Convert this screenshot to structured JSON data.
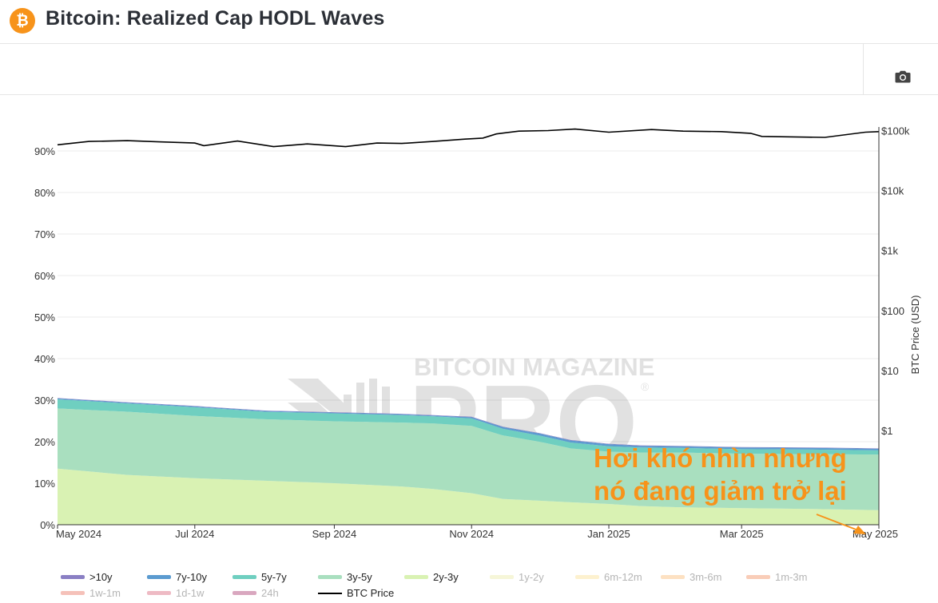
{
  "header": {
    "title": "Bitcoin: Realized Cap HODL Waves",
    "logo_glyph": "₿",
    "logo_icon": "bitcoin-logo-icon",
    "accent": "#f7931a"
  },
  "toolbar": {
    "camera_icon": "camera-icon"
  },
  "watermark": {
    "top": "BITCOIN MAGAZINE",
    "bottom": "PRO",
    "mark": "®"
  },
  "annotation": {
    "lines": [
      "Hơi khó nhìn nhưng",
      "nó đang giảm trở lại"
    ],
    "color": "#f7931a"
  },
  "chart_data": {
    "type": "area",
    "x": [
      "2024-05-01",
      "2024-06-01",
      "2024-07-01",
      "2024-08-01",
      "2024-09-01",
      "2024-10-01",
      "2024-10-15",
      "2024-11-01",
      "2024-11-15",
      "2024-12-01",
      "2024-12-15",
      "2025-01-01",
      "2025-01-15",
      "2025-02-01",
      "2025-03-01",
      "2025-04-01",
      "2025-05-01"
    ],
    "x_ticks": [
      "May 2024",
      "Jul 2024",
      "Sep 2024",
      "Nov 2024",
      "Jan 2025",
      "Mar 2025",
      "May 2025"
    ],
    "y_left": {
      "ticks": [
        "0%",
        "10%",
        "20%",
        "30%",
        "40%",
        "50%",
        "60%",
        "70%",
        "80%",
        "90%"
      ],
      "range": [
        0,
        95
      ]
    },
    "y_right": {
      "label": "BTC Price (USD)",
      "scale": "log",
      "ticks": [
        "$1",
        "$10",
        "$100",
        "$1k",
        "$10k",
        "$100k"
      ]
    },
    "series": [
      {
        "name": "2y-3y",
        "color": "#d9f2b3",
        "values": [
          13.5,
          12.0,
          11.2,
          10.6,
          10.0,
          9.2,
          8.6,
          7.6,
          6.2,
          5.8,
          5.4,
          5.0,
          4.5,
          4.2,
          4.0,
          3.8,
          3.5
        ]
      },
      {
        "name": "3y-5y",
        "color": "#a9dfbf",
        "values": [
          14.5,
          15.2,
          15.0,
          14.8,
          14.9,
          15.4,
          15.8,
          16.2,
          15.3,
          14.2,
          13.0,
          12.6,
          12.9,
          13.2,
          13.1,
          13.2,
          13.4
        ]
      },
      {
        "name": "5y-7y",
        "color": "#6fcfc0",
        "values": [
          2.2,
          2.0,
          2.1,
          1.8,
          1.9,
          1.8,
          1.7,
          1.8,
          1.6,
          1.5,
          1.4,
          1.3,
          1.2,
          1.1,
          1.1,
          1.1,
          1.0
        ]
      },
      {
        "name": "7y-10y",
        "color": "#5b9bd0",
        "values": [
          0.2,
          0.2,
          0.2,
          0.2,
          0.2,
          0.2,
          0.2,
          0.3,
          0.4,
          0.5,
          0.5,
          0.5,
          0.4,
          0.4,
          0.4,
          0.4,
          0.4
        ]
      },
      {
        "name": ">10y",
        "color": "#8a7fc4",
        "values": [
          0.1,
          0.1,
          0.1,
          0.1,
          0.1,
          0.1,
          0.1,
          0.1,
          0.1,
          0.1,
          0.1,
          0.1,
          0.1,
          0.1,
          0.1,
          0.1,
          0.1
        ]
      }
    ],
    "price": {
      "name": "BTC Price",
      "color": "#000000",
      "x": [
        "2024-05-01",
        "2024-05-15",
        "2024-06-01",
        "2024-06-15",
        "2024-07-01",
        "2024-07-05",
        "2024-07-20",
        "2024-08-05",
        "2024-08-20",
        "2024-09-06",
        "2024-09-20",
        "2024-10-01",
        "2024-10-15",
        "2024-10-29",
        "2024-11-06",
        "2024-11-12",
        "2024-11-22",
        "2024-12-05",
        "2024-12-17",
        "2025-01-01",
        "2025-01-20",
        "2025-02-03",
        "2025-02-20",
        "2025-03-05",
        "2025-03-10",
        "2025-04-07",
        "2025-04-25",
        "2025-05-01"
      ],
      "values": [
        58000,
        66000,
        68000,
        65000,
        62000,
        56000,
        67000,
        54000,
        60000,
        54000,
        62000,
        61000,
        66000,
        72000,
        75000,
        88000,
        98000,
        100000,
        106000,
        94000,
        104000,
        98000,
        96000,
        90000,
        80000,
        77000,
        94000,
        96000
      ]
    },
    "legend": [
      {
        "name": ">10y",
        "color": "#8a7fc4",
        "active": true
      },
      {
        "name": "7y-10y",
        "color": "#5b9bd0",
        "active": true
      },
      {
        "name": "5y-7y",
        "color": "#6fcfc0",
        "active": true
      },
      {
        "name": "3y-5y",
        "color": "#a9dfbf",
        "active": true
      },
      {
        "name": "2y-3y",
        "color": "#d9f2b3",
        "active": true
      },
      {
        "name": "1y-2y",
        "color": "#f6f6d8",
        "active": false
      },
      {
        "name": "6m-12m",
        "color": "#fdf1cf",
        "active": false
      },
      {
        "name": "3m-6m",
        "color": "#fde1c2",
        "active": false
      },
      {
        "name": "1m-3m",
        "color": "#f9cdb8",
        "active": false
      },
      {
        "name": "1w-1m",
        "color": "#f5c1b9",
        "active": false
      },
      {
        "name": "1d-1w",
        "color": "#eebac4",
        "active": false
      },
      {
        "name": "24h",
        "color": "#d9a7bf",
        "active": false
      },
      {
        "name": "BTC Price",
        "color": "#000000",
        "active": true,
        "line": true
      }
    ]
  }
}
